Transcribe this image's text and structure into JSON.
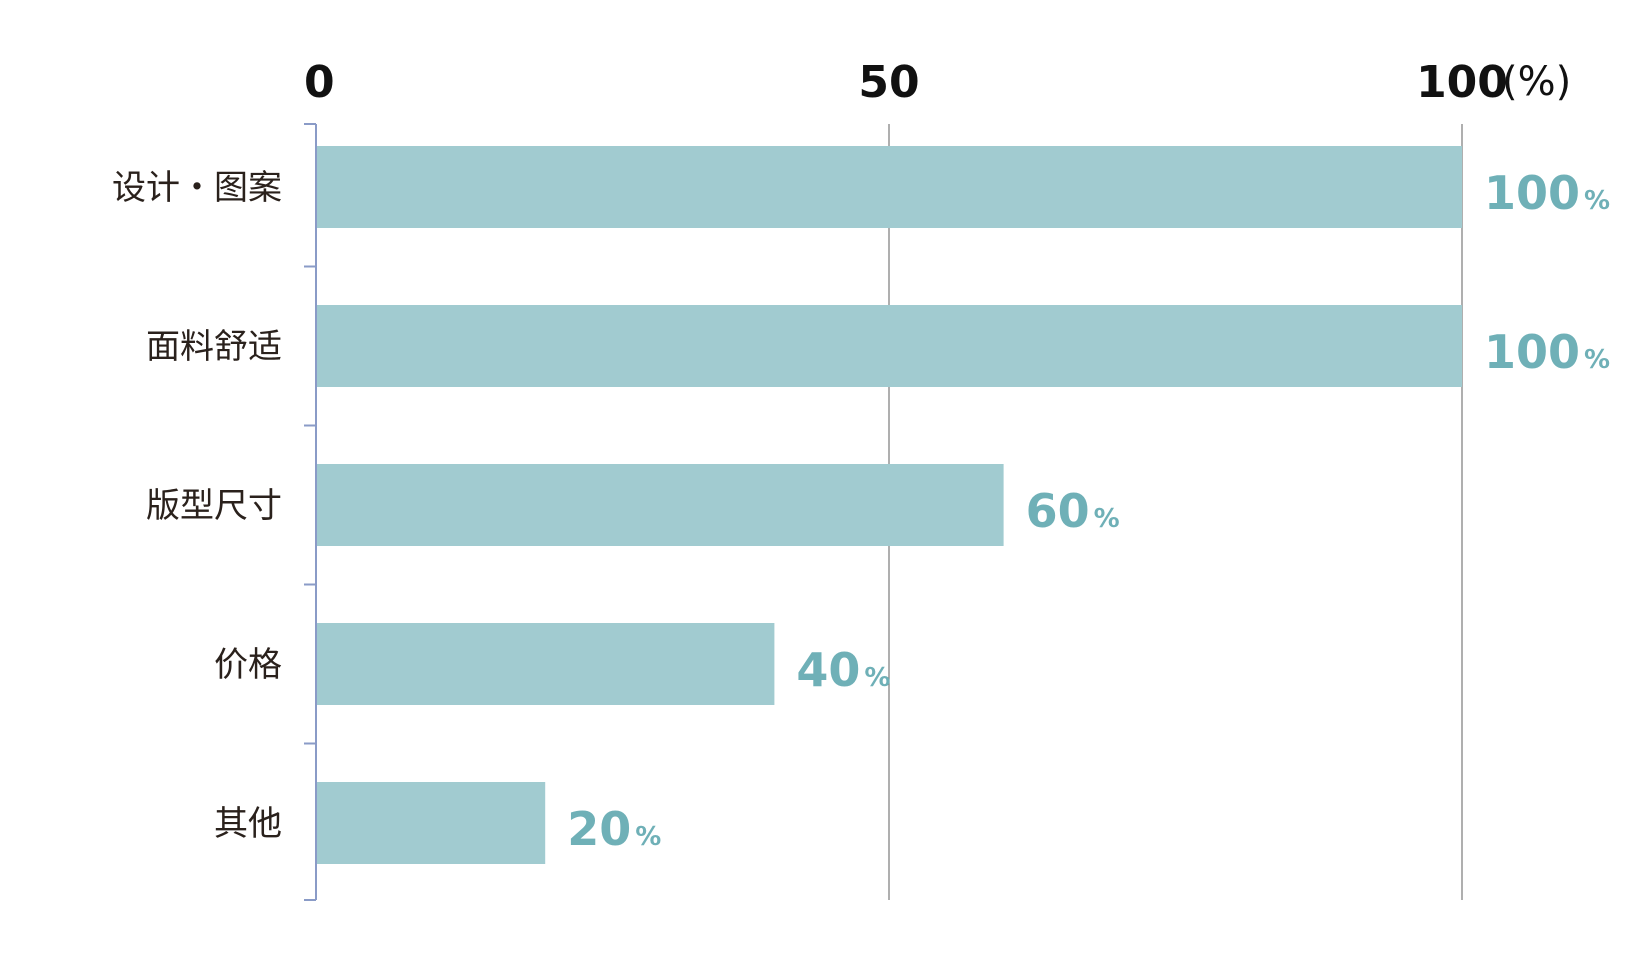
{
  "chart_data": {
    "type": "bar",
    "orientation": "horizontal",
    "categories": [
      "设计・图案",
      "面料舒适",
      "版型尺寸",
      "价格",
      "其他"
    ],
    "values": [
      100,
      100,
      60,
      40,
      20
    ],
    "value_suffix": "%",
    "xlim": [
      0,
      100
    ],
    "x_ticks": [
      0,
      50,
      100
    ],
    "x_unit": "(%)",
    "axis_position": "top",
    "grid": true,
    "legend": "none",
    "colors": {
      "bar": "#a1cbd0",
      "value_label": "#6fb0b7",
      "grid": "#7a7a7a",
      "axis": "#8a9bc7",
      "tick_text": "#111111",
      "category_text": "#2a211c"
    }
  }
}
